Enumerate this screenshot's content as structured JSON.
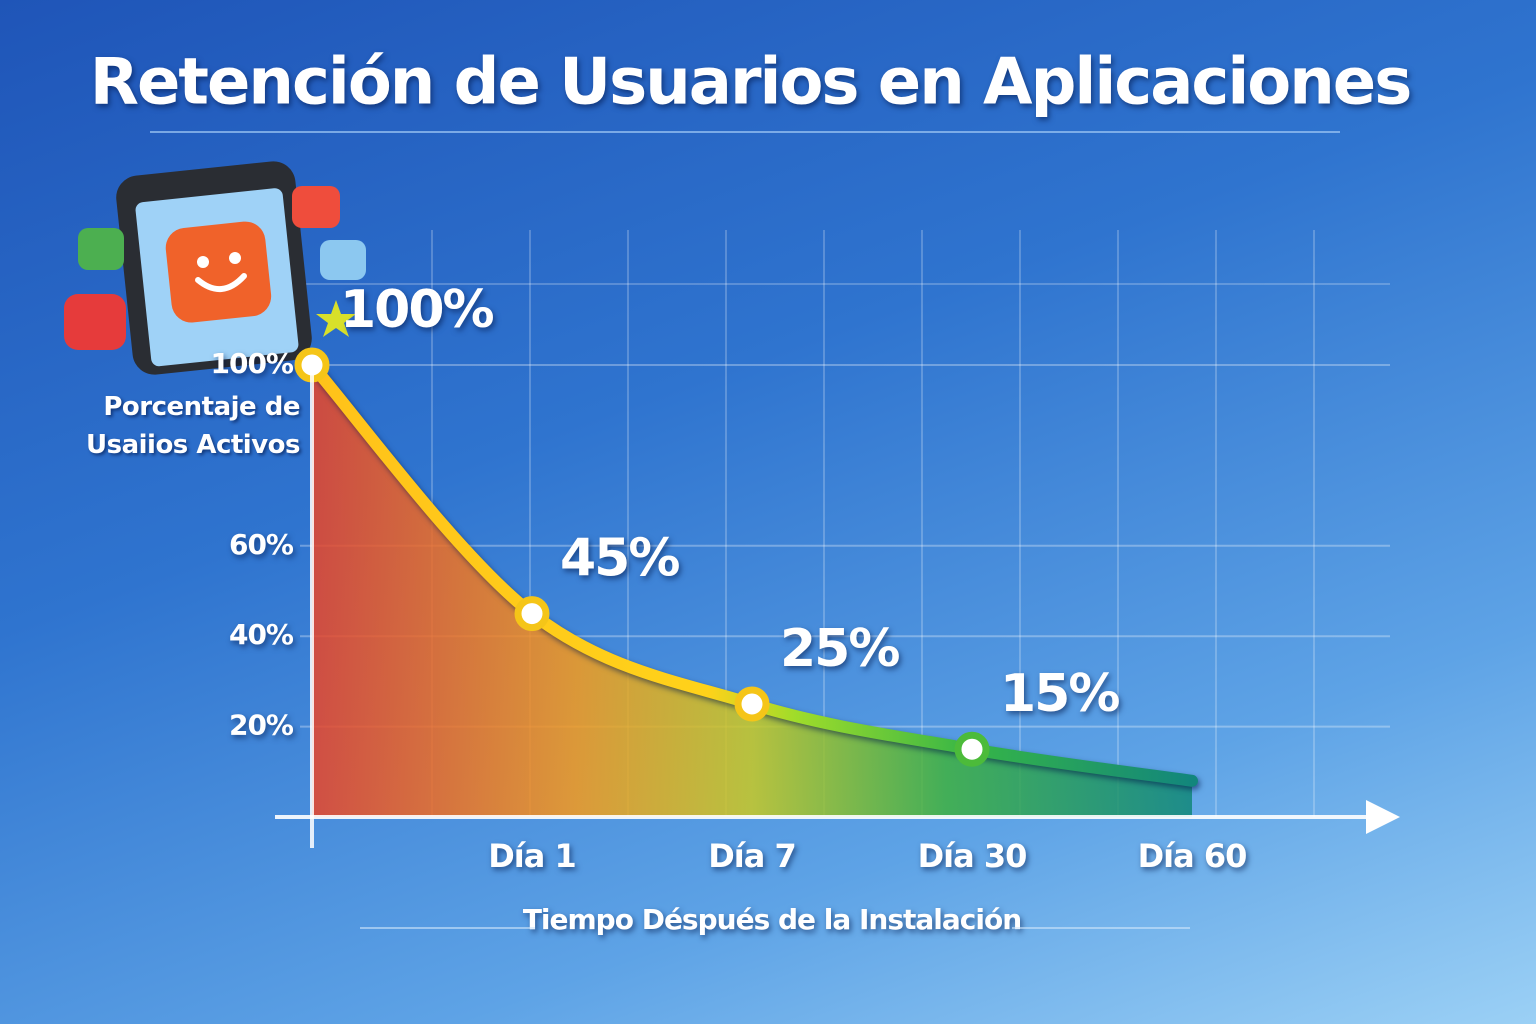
{
  "chart_data": {
    "type": "line",
    "title": "Retención de Usuarios en Aplicaciones",
    "y_axis_label": "Porcentaje de Usaiios Activos",
    "x_axis_label": "Tiempo Déspués de la Instalación",
    "categories": [
      null,
      "Día 1",
      "Día 7",
      "Día 30",
      "Día 60"
    ],
    "values": [
      100,
      45,
      25,
      15,
      8
    ],
    "value_labels": [
      "100%",
      "45%",
      "25%",
      "15%",
      null
    ],
    "ylim": [
      0,
      100
    ],
    "yticks": [
      {
        "value": 20,
        "label": "20%"
      },
      {
        "value": 40,
        "label": "40%"
      },
      {
        "value": 60,
        "label": "60%"
      },
      {
        "value": 100,
        "label": "100%"
      }
    ],
    "grid": true,
    "color": "#f5c518"
  }
}
